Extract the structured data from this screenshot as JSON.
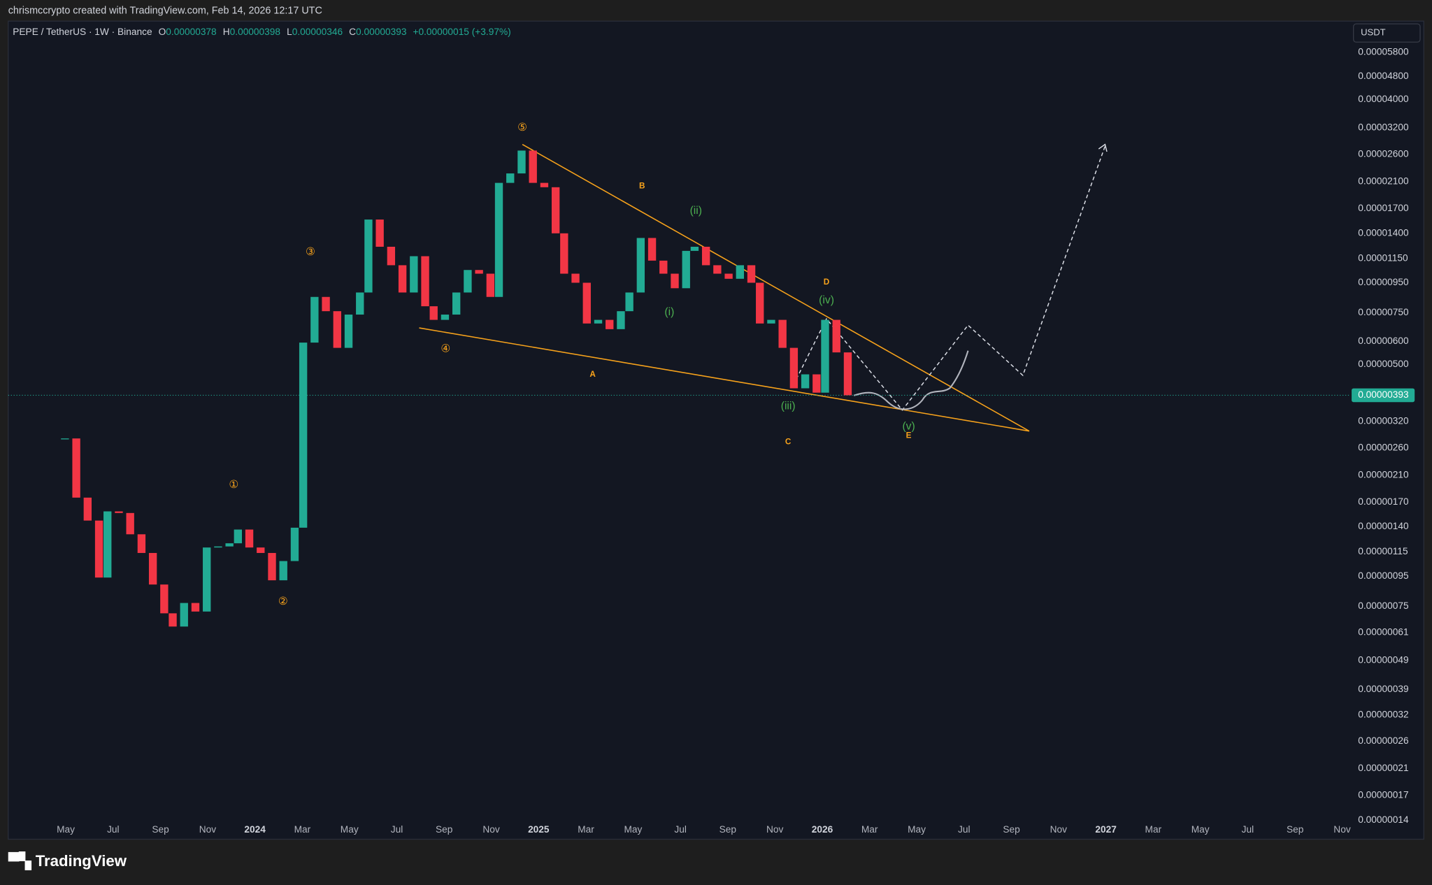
{
  "header": "chrismccrypto created with TradingView.com, Feb 14, 2026 12:17 UTC",
  "footer_logo": "TradingView",
  "chart_data": {
    "type": "candlestick",
    "legend": {
      "symbol": "PEPE / TetherUS · 1W · Binance",
      "open_label": "O",
      "open": "0.00000378",
      "high_label": "H",
      "high": "0.00000398",
      "low_label": "L",
      "low": "0.00000346",
      "close_label": "C",
      "close": "0.00000393",
      "change": "+0.00000015 (+3.97%)"
    },
    "currency": "USDT",
    "last_price": {
      "value": 3.93e-06,
      "label": "0.00000393"
    },
    "log_scale": true,
    "grid": false,
    "up_color": "#22ab94",
    "down_color": "#f23645",
    "x": [
      2023.33,
      2023.37,
      2023.41,
      2023.45,
      2023.48,
      2023.52,
      2023.56,
      2023.6,
      2023.64,
      2023.68,
      2023.71,
      2023.75,
      2023.79,
      2023.83,
      2023.87,
      2023.91,
      2023.94,
      2023.98,
      2024.02,
      2024.06,
      2024.1,
      2024.14,
      2024.17,
      2024.21,
      2024.25,
      2024.29,
      2024.33,
      2024.37,
      2024.4,
      2024.44,
      2024.48,
      2024.52,
      2024.56,
      2024.6,
      2024.63,
      2024.67,
      2024.71,
      2024.75,
      2024.79,
      2024.83,
      2024.86,
      2024.9,
      2024.94,
      2024.98,
      2025.02,
      2025.06,
      2025.09,
      2025.13,
      2025.17,
      2025.21,
      2025.25,
      2025.29,
      2025.32,
      2025.36,
      2025.4,
      2025.44,
      2025.48,
      2025.52,
      2025.55,
      2025.59,
      2025.63,
      2025.67,
      2025.71,
      2025.75,
      2025.78,
      2025.82,
      2025.86,
      2025.9,
      2025.94,
      2025.98,
      2026.01,
      2026.05,
      2026.09
    ],
    "values": [
      2.8e-06,
      1.76e-06,
      1.47e-06,
      9.4e-07,
      1.58e-06,
      1.56e-06,
      1.32e-06,
      1.14e-06,
      8.9e-07,
      7.1e-07,
      6.4e-07,
      7.7e-07,
      7.2e-07,
      1.19e-06,
      1.2e-06,
      1.23e-06,
      1.37e-06,
      1.19e-06,
      1.14e-06,
      9.2e-07,
      1.07e-06,
      1.39e-06,
      5.94e-06,
      8.5e-06,
      7.6e-06,
      5.7e-06,
      7.4e-06,
      8.8e-06,
      1.56e-05,
      1.26e-05,
      1.09e-05,
      8.8e-06,
      1.17e-05,
      7.9e-06,
      7.1e-06,
      7.4e-06,
      8.8e-06,
      1.05e-05,
      1.02e-05,
      8.5e-06,
      2.08e-05,
      2.24e-05,
      2.68e-05,
      2.08e-05,
      2.01e-05,
      1.4e-05,
      1.02e-05,
      9.5e-06,
      6.9e-06,
      7.1e-06,
      6.6e-06,
      7.6e-06,
      8.8e-06,
      1.35e-05,
      1.13e-05,
      1.02e-05,
      9.1e-06,
      1.22e-05,
      1.26e-05,
      1.09e-05,
      1.02e-05,
      9.8e-06,
      1.09e-05,
      9.5e-06,
      6.9e-06,
      7.1e-06,
      5.7e-06,
      4.15e-06,
      4.63e-06,
      4.01e-06,
      7.1e-06,
      5.5e-06,
      3.93e-06
    ],
    "xlim": [
      2023.13,
      2027.86
    ],
    "xticks": [
      {
        "value": 2023.333,
        "label": "May"
      },
      {
        "value": 2023.5,
        "label": "Jul"
      },
      {
        "value": 2023.667,
        "label": "Sep"
      },
      {
        "value": 2023.833,
        "label": "Nov"
      },
      2024,
      {
        "value": 2024.167,
        "label": "Mar"
      },
      {
        "value": 2024.333,
        "label": "May"
      },
      {
        "value": 2024.5,
        "label": "Jul"
      },
      {
        "value": 2024.667,
        "label": "Sep"
      },
      {
        "value": 2024.833,
        "label": "Nov"
      },
      2025,
      {
        "value": 2025.167,
        "label": "Mar"
      },
      {
        "value": 2025.333,
        "label": "May"
      },
      {
        "value": 2025.5,
        "label": "Jul"
      },
      {
        "value": 2025.667,
        "label": "Sep"
      },
      {
        "value": 2025.833,
        "label": "Nov"
      },
      2026,
      {
        "value": 2026.167,
        "label": "Mar"
      },
      {
        "value": 2026.333,
        "label": "May"
      },
      {
        "value": 2026.5,
        "label": "Jul"
      },
      {
        "value": 2026.667,
        "label": "Sep"
      },
      {
        "value": 2026.833,
        "label": "Nov"
      },
      2027,
      {
        "value": 2027.167,
        "label": "Mar"
      },
      {
        "value": 2027.333,
        "label": "May"
      },
      {
        "value": 2027.5,
        "label": "Jul"
      },
      {
        "value": 2027.667,
        "label": "Sep"
      },
      {
        "value": 2027.833,
        "label": "Nov"
      }
    ],
    "ylim": [
      1.215e-07,
      7.4e-05
    ],
    "yticks": [
      {
        "value": 5.8e-05,
        "label": "0.00005800"
      },
      {
        "value": 4.8e-05,
        "label": "0.00004800"
      },
      {
        "value": 4e-05,
        "label": "0.00004000"
      },
      {
        "value": 3.2e-05,
        "label": "0.00003200"
      },
      {
        "value": 2.6e-05,
        "label": "0.00002600"
      },
      {
        "value": 2.1e-05,
        "label": "0.00002100"
      },
      {
        "value": 1.7e-05,
        "label": "0.00001700"
      },
      {
        "value": 1.4e-05,
        "label": "0.00001400"
      },
      {
        "value": 1.15e-05,
        "label": "0.00001150"
      },
      {
        "value": 9.5e-06,
        "label": "0.00000950"
      },
      {
        "value": 7.5e-06,
        "label": "0.00000750"
      },
      {
        "value": 6e-06,
        "label": "0.00000600"
      },
      {
        "value": 5e-06,
        "label": "0.00000500"
      },
      {
        "value": 3.2e-06,
        "label": "0.00000320"
      },
      {
        "value": 2.6e-06,
        "label": "0.00000260"
      },
      {
        "value": 2.1e-06,
        "label": "0.00000210"
      },
      {
        "value": 1.7e-06,
        "label": "0.00000170"
      },
      {
        "value": 1.4e-06,
        "label": "0.00000140"
      },
      {
        "value": 1.15e-06,
        "label": "0.00000115"
      },
      {
        "value": 9.5e-07,
        "label": "0.00000095"
      },
      {
        "value": 7.5e-07,
        "label": "0.00000075"
      },
      {
        "value": 6.1e-07,
        "label": "0.00000061"
      },
      {
        "value": 4.9e-07,
        "label": "0.00000049"
      },
      {
        "value": 3.9e-07,
        "label": "0.00000039"
      },
      {
        "value": 3.2e-07,
        "label": "0.00000032"
      },
      {
        "value": 2.6e-07,
        "label": "0.00000026"
      },
      {
        "value": 2.1e-07,
        "label": "0.00000021"
      },
      {
        "value": 1.7e-07,
        "label": "0.00000017"
      },
      {
        "value": 1.4e-07,
        "label": "0.00000014"
      }
    ],
    "primary_waves": [
      "①",
      "②",
      "③",
      "④",
      "⑤"
    ],
    "corrective_waves": [
      "A",
      "B",
      "C",
      "D",
      "E"
    ],
    "minor_waves": [
      "(i)",
      "(ii)",
      "(iii)",
      "(iv)",
      "(v)"
    ]
  }
}
